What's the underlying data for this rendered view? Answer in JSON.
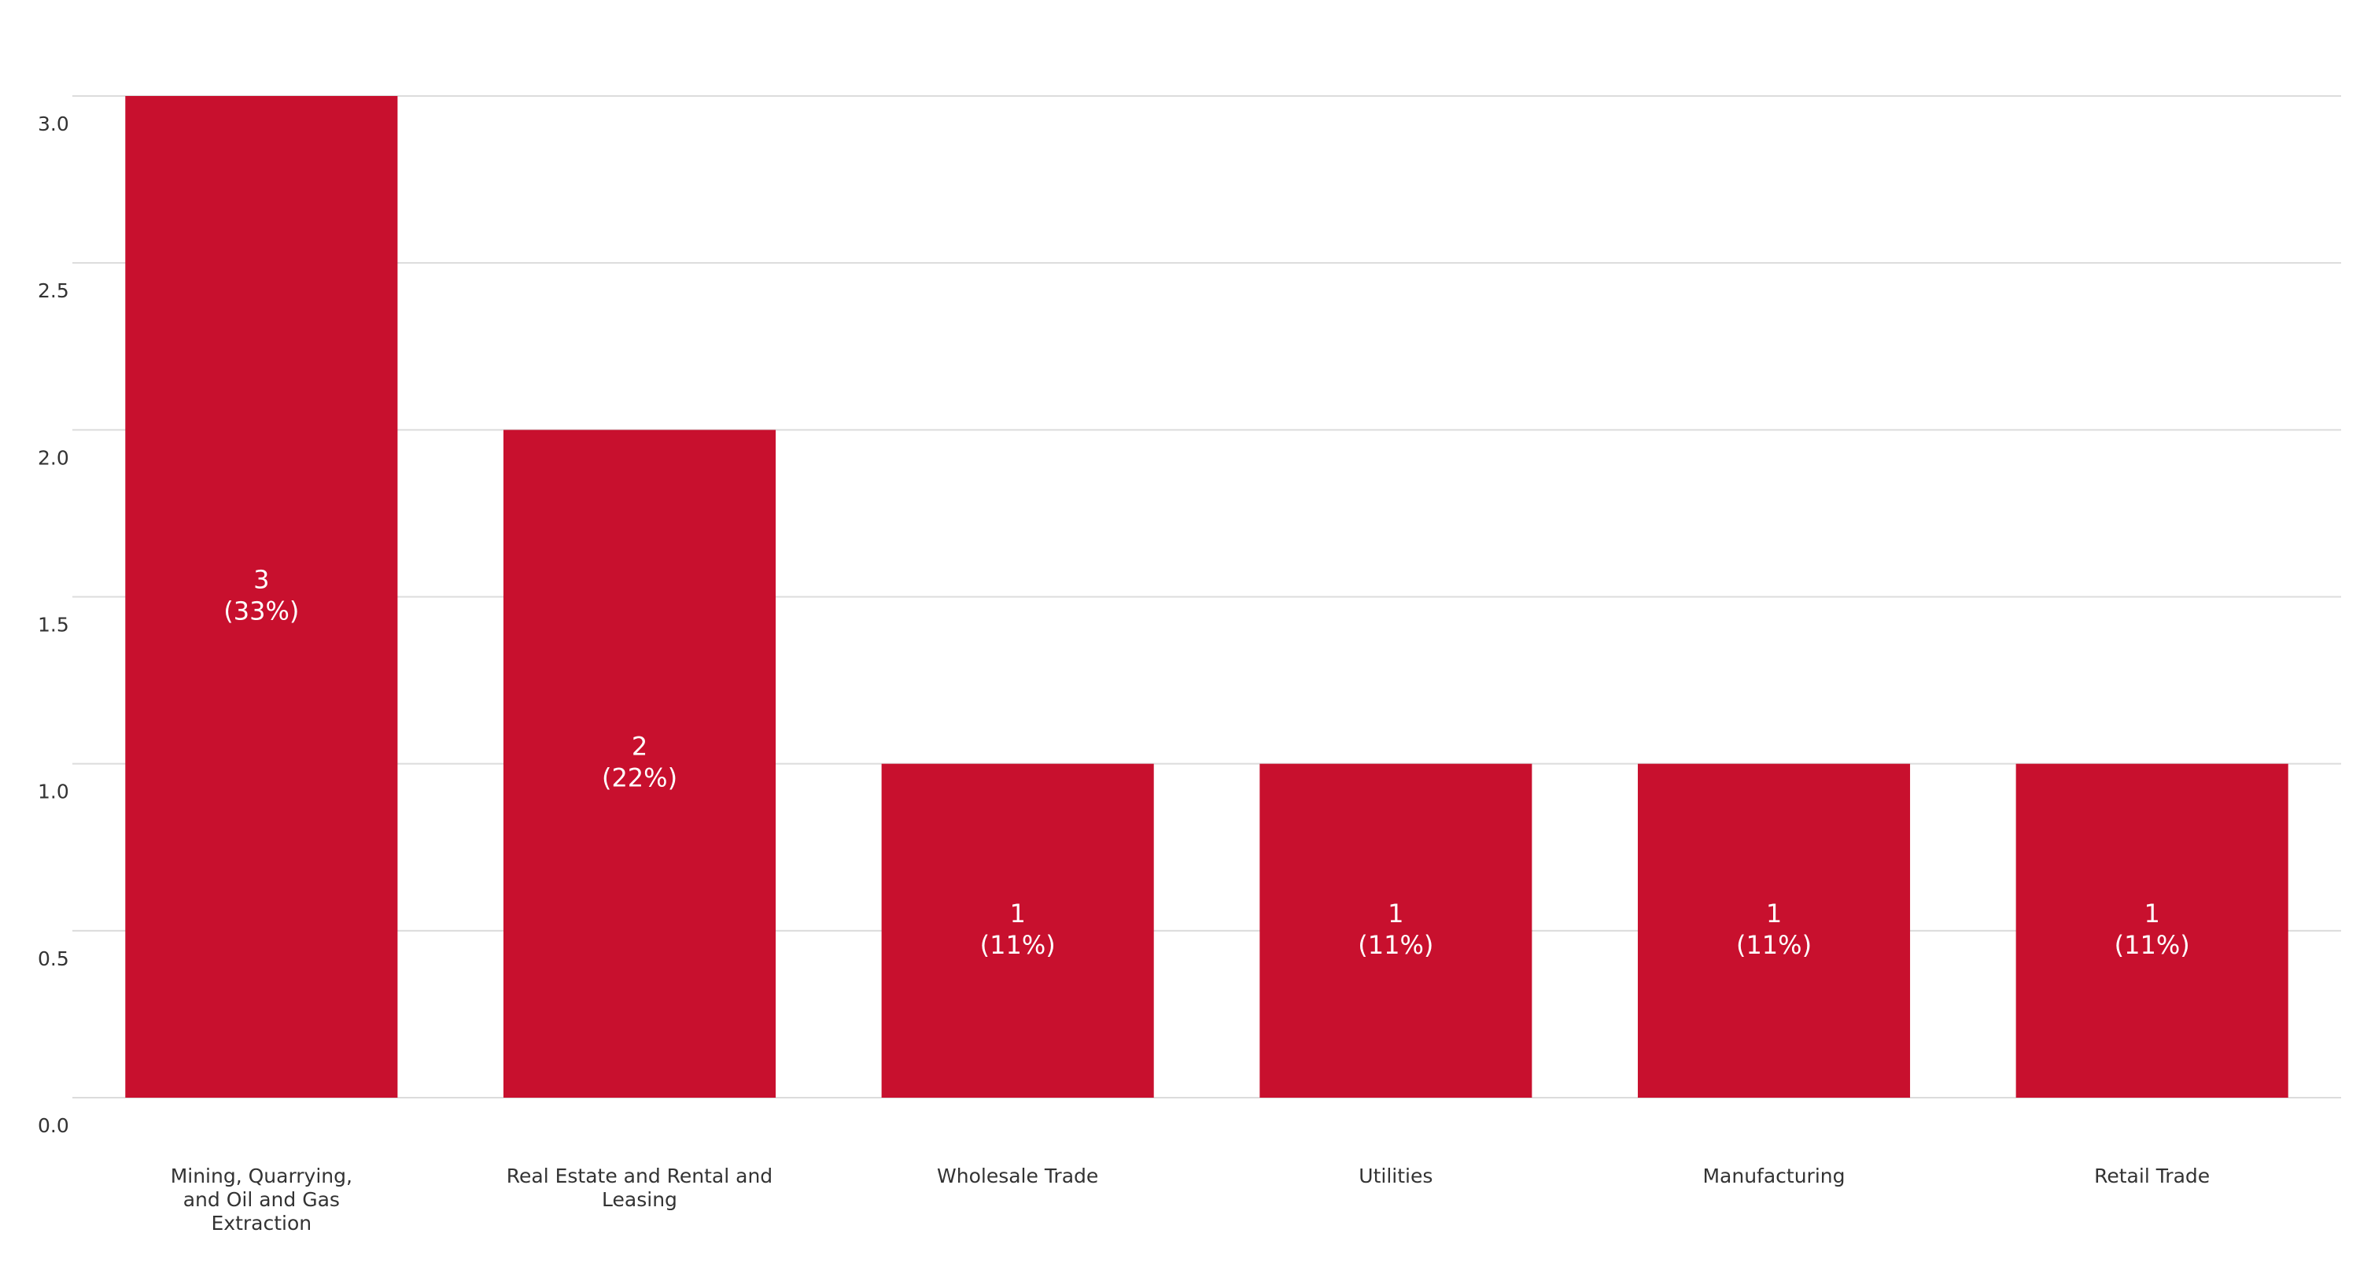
{
  "chart_data": {
    "type": "bar",
    "categories": [
      "Mining, Quarrying, and Oil and Gas Extraction",
      "Real Estate and Rental and Leasing",
      "Wholesale Trade",
      "Utilities",
      "Manufacturing",
      "Retail Trade"
    ],
    "values": [
      3,
      2,
      1,
      1,
      1,
      1
    ],
    "value_labels": [
      "3 (33%)",
      "2 (22%)",
      "1 (11%)",
      "1 (11%)",
      "1 (11%)",
      "1 (11%)"
    ],
    "color": "#c8102e",
    "ylim": [
      0,
      3
    ],
    "yticks": [
      {
        "value": 0,
        "label": "0.0"
      },
      {
        "value": 0.5,
        "label": "0.5"
      },
      {
        "value": 1,
        "label": "1.0"
      },
      {
        "value": 1.5,
        "label": "1.5"
      },
      {
        "value": 2,
        "label": "2.0"
      },
      {
        "value": 2.5,
        "label": "2.5"
      },
      {
        "value": 3,
        "label": "3.0"
      }
    ],
    "grid": true
  }
}
